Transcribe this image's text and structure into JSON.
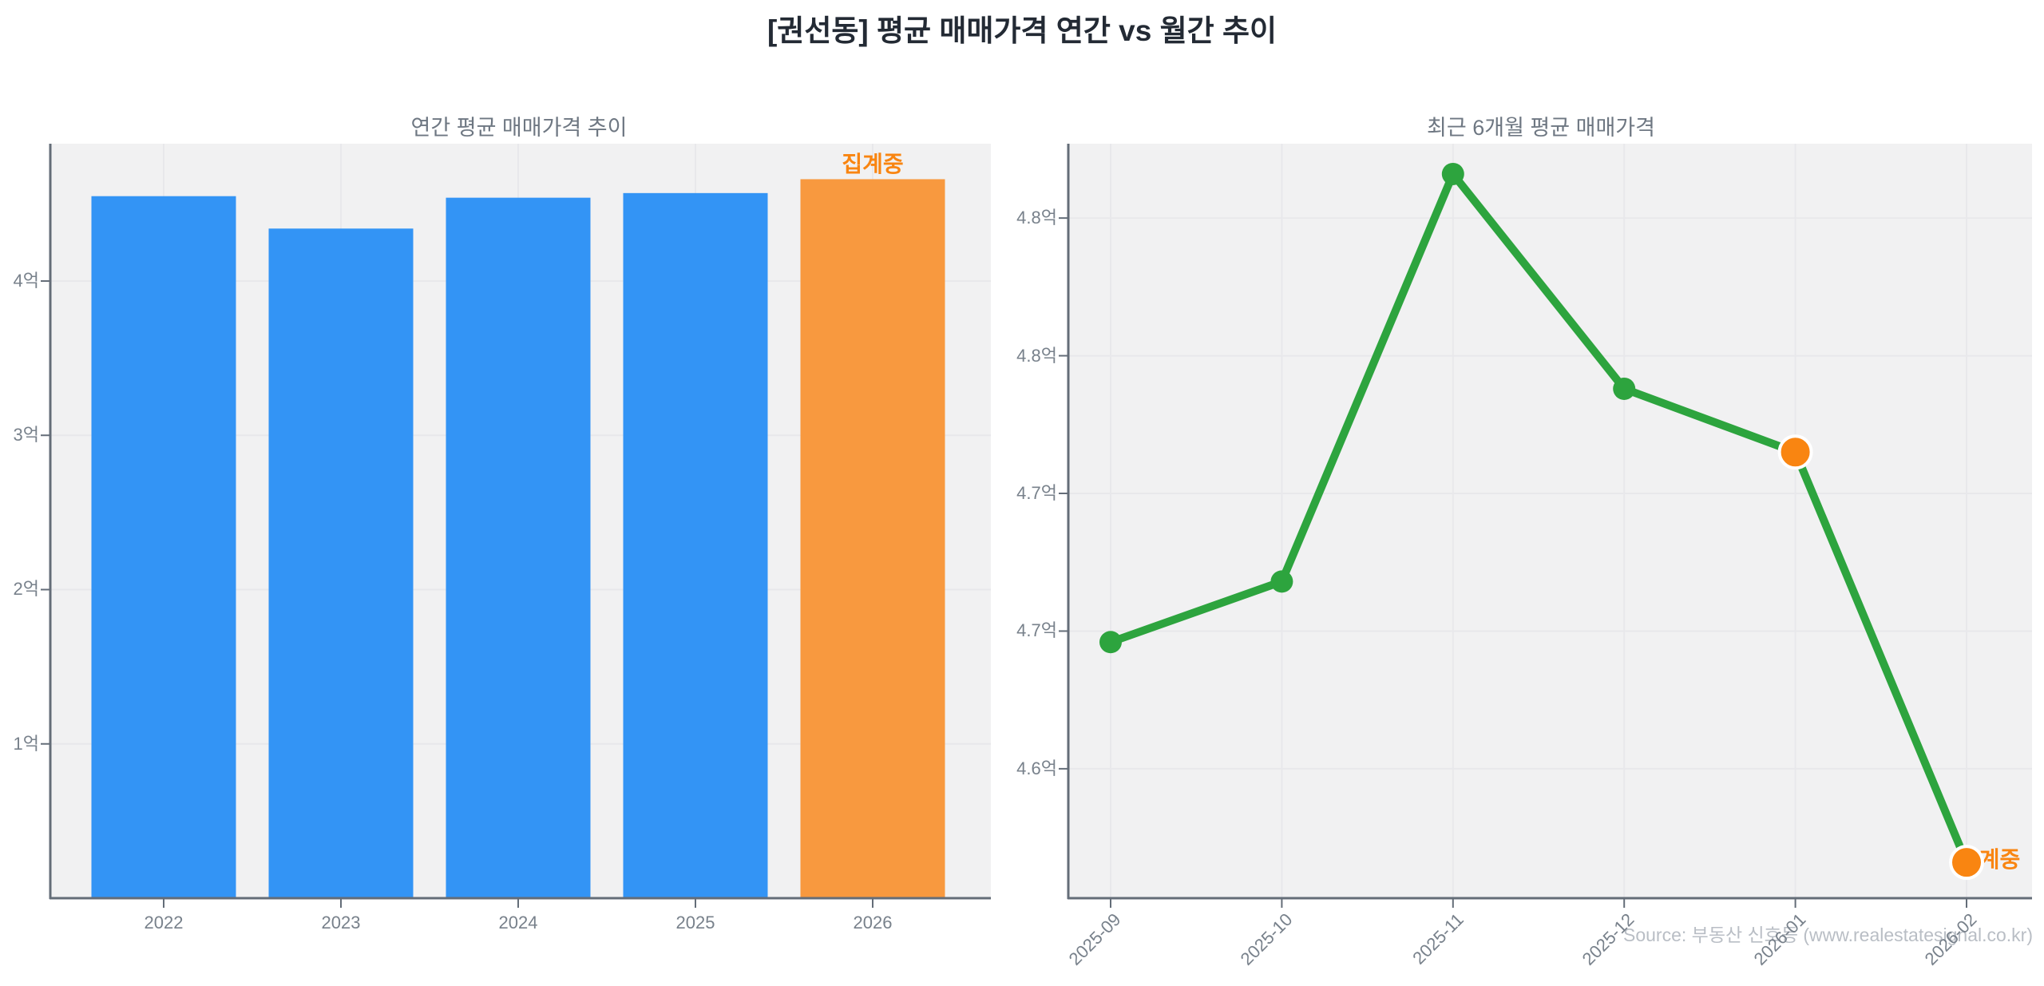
{
  "page": {
    "title": "[권선동] 평균 매매가격 연간 vs 월간 추이",
    "source_credit": "Source: 부동산 신호등 (www.realestatesignal.co.kr)"
  },
  "colors": {
    "plot_bg": "#f1f1f2",
    "grid": "#e8e8eb",
    "spine": "#646d78",
    "tick_text": "#78818b",
    "subtitle_text": "#6e7782",
    "main_title_text": "#232a34",
    "source_text": "#b9bec5"
  },
  "chart_data": [
    {
      "type": "bar",
      "title": "연간 평균 매매가격 추이",
      "unit": "억",
      "categories": [
        "2022",
        "2023",
        "2024",
        "2025",
        "2026"
      ],
      "values": [
        4.55,
        4.34,
        4.54,
        4.57,
        4.66
      ],
      "ylim": [
        0,
        4.89
      ],
      "yticks": [
        {
          "value": 1,
          "label": "1억"
        },
        {
          "value": 2,
          "label": "2억"
        },
        {
          "value": 3,
          "label": "3억"
        },
        {
          "value": 4,
          "label": "4억"
        }
      ],
      "grid": true,
      "legend": false,
      "xlabel": "",
      "ylabel": "",
      "bar_colors": [
        "#3394f5",
        "#3394f5",
        "#3394f5",
        "#3394f5",
        "#f8993f"
      ],
      "annotation": {
        "text": "집계중",
        "category": "2026",
        "color": "#f98511"
      }
    },
    {
      "type": "line",
      "title": "최근 6개월 평균 매매가격",
      "unit": "억",
      "categories": [
        "2025-09",
        "2025-10",
        "2025-11",
        "2025-12",
        "2026-01",
        "2026-02"
      ],
      "values": [
        4.646,
        4.668,
        4.816,
        4.738,
        4.715,
        4.566
      ],
      "ylim": [
        4.553,
        4.827
      ],
      "yticks": [
        {
          "value": 4.6,
          "label": "4.6억"
        },
        {
          "value": 4.65,
          "label": "4.7억"
        },
        {
          "value": 4.7,
          "label": "4.7억"
        },
        {
          "value": 4.75,
          "label": "4.8억"
        },
        {
          "value": 4.8,
          "label": "4.8억"
        }
      ],
      "grid": true,
      "legend": false,
      "xlabel": "",
      "ylabel": "",
      "xtick_rotation": 45,
      "line_color": "#2da43e",
      "point_colors": [
        "#2da43e",
        "#2da43e",
        "#2da43e",
        "#2da43e",
        "#f98511",
        "#f98511"
      ],
      "point_border": "#ffffff",
      "annotation": {
        "text": "집계중",
        "category": "2026-02",
        "color": "#f98511"
      }
    }
  ]
}
